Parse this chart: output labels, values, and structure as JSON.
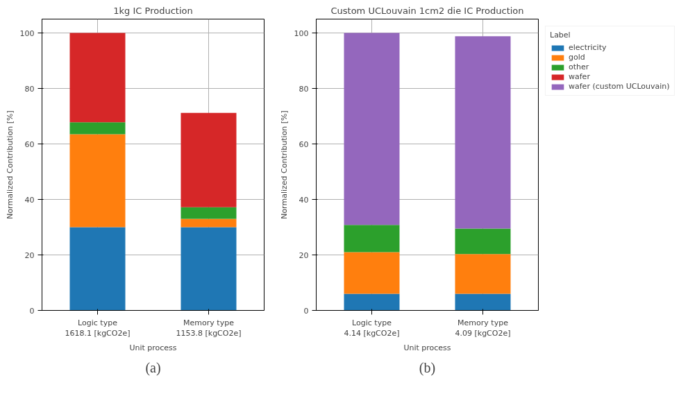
{
  "chart_data": [
    {
      "type": "bar",
      "title": "1kg IC Production",
      "xlabel": "Unit process",
      "ylabel": "Normalized Contribution [%]",
      "categories": [
        "Logic type\n1618.1 [kgCO2e]",
        "Memory type\n1153.8 [kgCO2e]"
      ],
      "stacked": true,
      "ylim": [
        0,
        105
      ],
      "yticks": [
        0,
        20,
        40,
        60,
        80,
        100
      ],
      "grid": true,
      "annotations": [
        "(a)"
      ],
      "series": [
        {
          "color": "#1f77b4",
          "values": [
            30,
            30
          ]
        },
        {
          "color": "#ff7f0e",
          "values": [
            33.5,
            3
          ]
        },
        {
          "color": "#2ca02c",
          "values": [
            4.3,
            4.2
          ]
        },
        {
          "color": "#d62728",
          "values": [
            32.2,
            34
          ]
        }
      ]
    },
    {
      "type": "bar",
      "title": "Custom UCLouvain 1cm2 die IC Production",
      "xlabel": "Unit process",
      "ylabel": "Normalized Contribution [%]",
      "categories": [
        "Logic type\n4.14 [kgCO2e]",
        "Memory type\n4.09 [kgCO2e]"
      ],
      "stacked": true,
      "ylim": [
        0,
        105
      ],
      "yticks": [
        0,
        20,
        40,
        60,
        80,
        100
      ],
      "grid": true,
      "legend": "top right",
      "legend_title": "Label",
      "annotations": [
        "(b)"
      ],
      "series": [
        {
          "name": "electricity",
          "color": "#1f77b4",
          "values": [
            6,
            6
          ]
        },
        {
          "name": "gold",
          "color": "#ff7f0e",
          "values": [
            15,
            14.3
          ]
        },
        {
          "name": "other",
          "color": "#2ca02c",
          "values": [
            9.8,
            9.2
          ]
        },
        {
          "name": "wafer",
          "color": "#d62728",
          "values": [
            0,
            0
          ]
        },
        {
          "name": "wafer (custom UCLouvain)",
          "color": "#9467bd",
          "values": [
            69.2,
            69.3
          ]
        }
      ]
    }
  ]
}
